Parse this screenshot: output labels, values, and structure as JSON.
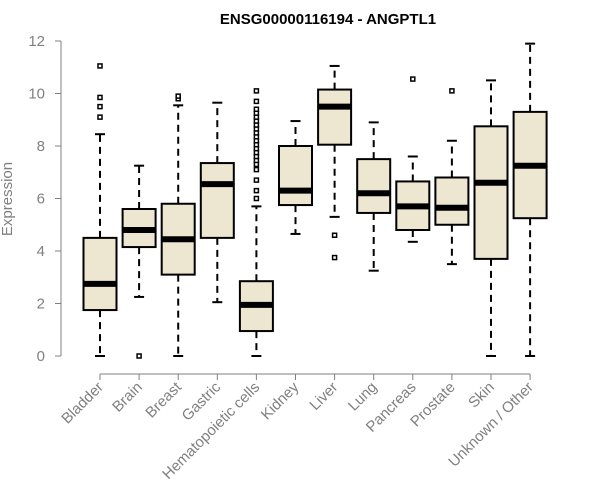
{
  "chart_data": {
    "type": "boxplot",
    "title": "ENSG00000116194 - ANGPTL1",
    "xlabel": "",
    "ylabel": "Expression",
    "ylim": [
      0,
      12
    ],
    "yticks": [
      0,
      2,
      4,
      6,
      8,
      10,
      12
    ],
    "box_color": "#ede6d0",
    "categories": [
      "Bladder",
      "Brain",
      "Breast",
      "Gastric",
      "Hematopoietic cells",
      "Kidney",
      "Liver",
      "Lung",
      "Pancreas",
      "Prostate",
      "Skin",
      "Unknown / Other"
    ],
    "boxes": [
      {
        "min": 0,
        "q1": 1.75,
        "median": 2.75,
        "q3": 4.5,
        "max": 8.45,
        "outliers": [
          9.1,
          9.5,
          9.85,
          11.05
        ]
      },
      {
        "min": 2.25,
        "q1": 4.15,
        "median": 4.8,
        "q3": 5.6,
        "max": 7.25,
        "outliers": [
          0
        ]
      },
      {
        "min": 0,
        "q1": 3.1,
        "median": 4.45,
        "q3": 5.8,
        "max": 9.55,
        "outliers": [
          9.8,
          9.9
        ]
      },
      {
        "min": 2.05,
        "q1": 4.5,
        "median": 6.55,
        "q3": 7.35,
        "max": 9.65,
        "outliers": []
      },
      {
        "min": 0,
        "q1": 0.95,
        "median": 1.95,
        "q3": 2.85,
        "max": 5.7,
        "outliers": [
          6.0,
          6.3,
          6.7,
          7.1,
          7.3,
          7.45,
          7.6,
          7.75,
          7.9,
          8.05,
          8.2,
          8.35,
          8.5,
          8.65,
          8.8,
          8.95,
          9.1,
          9.25,
          9.4,
          9.7,
          10.1
        ]
      },
      {
        "min": 4.65,
        "q1": 5.75,
        "median": 6.3,
        "q3": 8.0,
        "max": 8.95,
        "outliers": []
      },
      {
        "min": 5.3,
        "q1": 8.05,
        "median": 9.5,
        "q3": 10.15,
        "max": 11.05,
        "outliers": [
          4.6,
          3.75
        ]
      },
      {
        "min": 3.25,
        "q1": 5.45,
        "median": 6.2,
        "q3": 7.5,
        "max": 8.9,
        "outliers": []
      },
      {
        "min": 4.35,
        "q1": 4.8,
        "median": 5.7,
        "q3": 6.65,
        "max": 7.6,
        "outliers": [
          10.55
        ]
      },
      {
        "min": 3.5,
        "q1": 5.0,
        "median": 5.65,
        "q3": 6.8,
        "max": 8.2,
        "outliers": [
          10.1
        ]
      },
      {
        "min": 0,
        "q1": 3.7,
        "median": 6.6,
        "q3": 8.75,
        "max": 10.5,
        "outliers": []
      },
      {
        "min": 0,
        "q1": 5.25,
        "median": 7.25,
        "q3": 9.3,
        "max": 11.9,
        "outliers": []
      }
    ]
  }
}
